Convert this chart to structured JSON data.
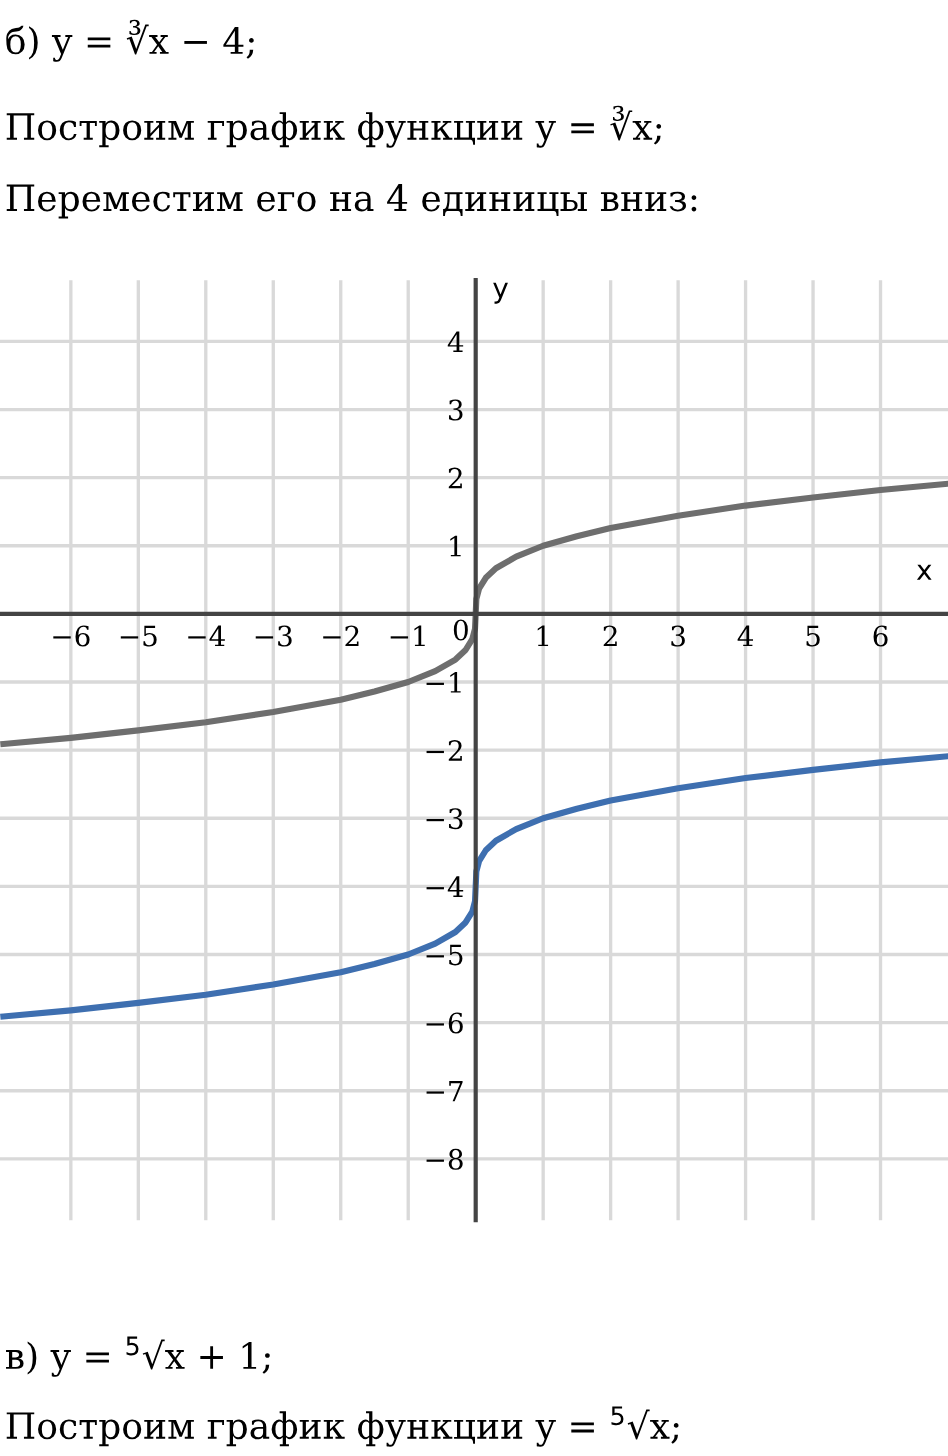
{
  "chart_data": {
    "type": "line",
    "title": "б) y = ∛x − 4;",
    "annotations": [
      "Построим график функции y = ∛x;",
      "Переместим его на 4 единицы вниз:",
      "в) y = $^{5}$√x + 1;",
      "Построим график функции y = $^{5}$√x;"
    ],
    "xlabel": "x",
    "ylabel": "y",
    "x": [
      -7,
      -6,
      -5,
      -4,
      -3,
      -2,
      -1.5,
      -1,
      -0.6,
      -0.3,
      -0.15,
      -0.05,
      -0.01,
      0,
      0.01,
      0.05,
      0.15,
      0.3,
      0.6,
      1,
      1.5,
      2,
      3,
      4,
      5,
      6,
      7
    ],
    "series": [
      {
        "color": "#6e6e6e",
        "values": [
          -1.91,
          -1.82,
          -1.71,
          -1.59,
          -1.44,
          -1.26,
          -1.14,
          -1,
          -0.84,
          -0.67,
          -0.53,
          -0.37,
          -0.22,
          0,
          0.22,
          0.37,
          0.53,
          0.67,
          0.84,
          1,
          1.14,
          1.26,
          1.44,
          1.59,
          1.71,
          1.82,
          1.91
        ]
      },
      {
        "color": "#3e6fb0",
        "values": [
          -5.91,
          -5.82,
          -5.71,
          -5.59,
          -5.44,
          -5.26,
          -5.14,
          -5,
          -4.84,
          -4.67,
          -4.53,
          -4.37,
          -4.22,
          -4,
          -3.78,
          -3.63,
          -3.47,
          -3.33,
          -3.16,
          -3,
          -2.86,
          -2.74,
          -2.56,
          -2.41,
          -2.29,
          -2.18,
          -2.09
        ]
      }
    ],
    "xlim": [
      -7.05,
      7.0
    ],
    "ylim": [
      -8.9,
      4.9
    ],
    "xticks": [
      {
        "value": -6,
        "label": "−6"
      },
      {
        "value": -5,
        "label": "−5"
      },
      {
        "value": -4,
        "label": "−4"
      },
      {
        "value": -3,
        "label": "−3"
      },
      {
        "value": -2,
        "label": "−2"
      },
      {
        "value": -1,
        "label": "−1"
      },
      0,
      1,
      2,
      3,
      4,
      5,
      6
    ],
    "yticks": [
      {
        "value": -8,
        "label": "−8"
      },
      {
        "value": -7,
        "label": "−7"
      },
      {
        "value": -6,
        "label": "−6"
      },
      {
        "value": -5,
        "label": "−5"
      },
      {
        "value": -4,
        "label": "−4"
      },
      {
        "value": -3,
        "label": "−3"
      },
      {
        "value": -2,
        "label": "−2"
      },
      {
        "value": -1,
        "label": "−1"
      },
      1,
      2,
      3,
      4
    ],
    "grid": true,
    "marker": "none",
    "line_style": "solid"
  }
}
